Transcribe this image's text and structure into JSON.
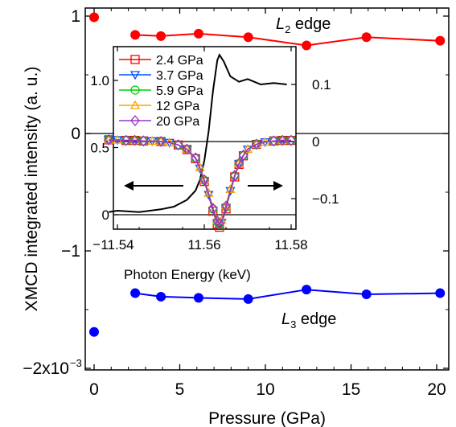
{
  "chart_data": [
    {
      "type": "scatter",
      "xlabel": "Pressure (GPa)",
      "ylabel": "XMCD integrated intensity (a. u.)",
      "xlim": [
        -0.5,
        20.5
      ],
      "ylim": [
        -2.0,
        1.05
      ],
      "y_scale_factor_label": "×10⁻³",
      "x_ticks": [
        0,
        5,
        10,
        15,
        20
      ],
      "y_ticks": [
        {
          "value": 1,
          "label": "1"
        },
        {
          "value": 0,
          "label": "0"
        },
        {
          "value": -1,
          "label": "−1"
        },
        {
          "value": -2,
          "label": "−2x10"
        }
      ],
      "y_tick_exponent": "−3",
      "series": [
        {
          "name": "L2 edge",
          "label_main": "L",
          "label_sub": "2",
          "label_rest": " edge",
          "color": "#ff0000",
          "x": [
            0,
            2.4,
            3.9,
            6.1,
            9.0,
            12.4,
            15.9,
            20.2
          ],
          "y": [
            0.99,
            0.84,
            0.83,
            0.85,
            0.82,
            0.75,
            0.82,
            0.79
          ]
        },
        {
          "name": "L3 edge",
          "label_main": "L",
          "label_sub": "3",
          "label_rest": " edge",
          "color": "#0000ff",
          "x": [
            0,
            2.4,
            3.9,
            6.1,
            9.0,
            12.4,
            15.9,
            20.2
          ],
          "y": [
            -1.69,
            -1.36,
            -1.39,
            -1.4,
            -1.41,
            -1.33,
            -1.37,
            -1.36
          ]
        }
      ],
      "zero_line": true
    },
    {
      "type": "line",
      "xlabel": "Photon Energy (keV)",
      "xlim": [
        11.538,
        11.581
      ],
      "x_ticks": [
        11.54,
        11.56,
        11.58
      ],
      "x_tick_labels": [
        "11.54",
        "11.56",
        "11.58"
      ],
      "y_left_lim": [
        -0.05,
        1.3
      ],
      "y_left_ticks": [
        0,
        0.5,
        1.0
      ],
      "y_left_tick_labels": [
        "0",
        "0.5",
        "1.0"
      ],
      "y_right_lim": [
        -0.18,
        0.16
      ],
      "y_right_ticks": [
        0.1,
        0,
        -0.1
      ],
      "y_right_tick_labels": [
        "0.1",
        "0",
        "−0.1"
      ],
      "legend_position": "top-left",
      "arrows": [
        "left",
        "right"
      ],
      "xanes": {
        "color": "#000000",
        "x": [
          11.538,
          11.54,
          11.545,
          11.55,
          11.553,
          11.556,
          11.558,
          11.559,
          11.56,
          11.561,
          11.562,
          11.563,
          11.5635,
          11.5645,
          11.566,
          11.568,
          11.57,
          11.573,
          11.576,
          11.579
        ],
        "y": [
          0.02,
          0.03,
          0.02,
          0.04,
          0.06,
          0.11,
          0.18,
          0.26,
          0.4,
          0.62,
          0.92,
          1.15,
          1.19,
          1.14,
          1.03,
          0.99,
          1.01,
          0.97,
          0.98,
          0.97
        ]
      },
      "xmcd_x": [
        11.538,
        11.54,
        11.542,
        11.544,
        11.546,
        11.548,
        11.55,
        11.552,
        11.554,
        11.556,
        11.558,
        11.559,
        11.56,
        11.561,
        11.562,
        11.563,
        11.5635,
        11.564,
        11.565,
        11.566,
        11.567,
        11.568,
        11.569,
        11.57,
        11.572,
        11.574,
        11.576,
        11.578,
        11.58
      ],
      "xmcd_base": [
        0.003,
        0.003,
        0.002,
        0.002,
        0.001,
        0.001,
        0.0,
        -0.002,
        -0.006,
        -0.014,
        -0.03,
        -0.048,
        -0.07,
        -0.095,
        -0.122,
        -0.145,
        -0.15,
        -0.145,
        -0.118,
        -0.088,
        -0.062,
        -0.04,
        -0.025,
        -0.014,
        -0.005,
        -0.001,
        0.001,
        0.002,
        0.002
      ],
      "series": [
        {
          "name": "2.4 GPa",
          "color": "#ff0000",
          "marker": "square",
          "scale": 1.0
        },
        {
          "name": "3.7 GPa",
          "color": "#0050ff",
          "marker": "triangle-down",
          "scale": 0.98
        },
        {
          "name": "5.9 GPa",
          "color": "#00d000",
          "marker": "circle",
          "scale": 0.97
        },
        {
          "name": "12 GPa",
          "color": "#ffa000",
          "marker": "triangle-up",
          "scale": 0.95
        },
        {
          "name": "20 GPa",
          "color": "#9933cc",
          "marker": "diamond",
          "scale": 0.96
        }
      ]
    }
  ]
}
